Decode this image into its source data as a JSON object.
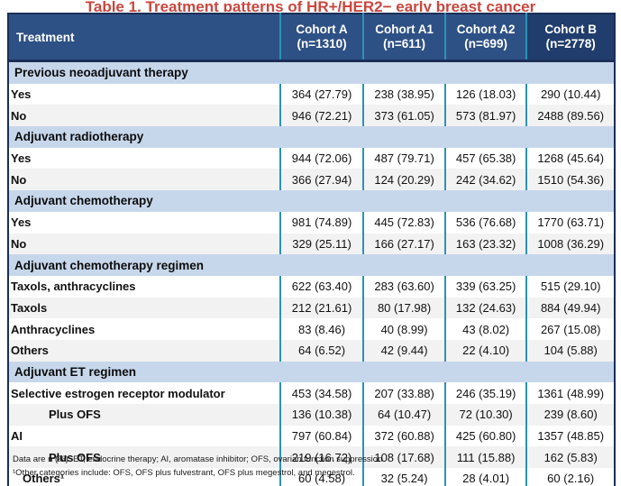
{
  "title": "Table 1. Treatment patterns of HR+/HER2− early breast cancer",
  "colors": {
    "header_blue": "#2e5185",
    "header_dark_blue": "#203d6d",
    "divider_teal": "#2a93b4",
    "section_blue": "#c7d7eb",
    "zebra_gray": "#f2f2f2",
    "border_navy": "#1b2f55",
    "title_red": "#c9473f"
  },
  "table": {
    "treatment_header": "Treatment",
    "columns": [
      {
        "name": "Cohort A",
        "n": "(n=1310)",
        "dark": false
      },
      {
        "name": "Cohort A1",
        "n": "(n=611)",
        "dark": false
      },
      {
        "name": "Cohort A2",
        "n": "(n=699)",
        "dark": false
      },
      {
        "name": "Cohort B",
        "n": "(n=2778)",
        "dark": true
      }
    ],
    "sections": [
      {
        "label": "Previous neoadjuvant therapy",
        "rows": [
          {
            "label": "Yes",
            "indent": 1,
            "values": [
              "364 (27.79)",
              "238 (38.95)",
              "126 (18.03)",
              "290 (10.44)"
            ]
          },
          {
            "label": "No",
            "indent": 1,
            "values": [
              "946 (72.21)",
              "373 (61.05)",
              "573 (81.97)",
              "2488 (89.56)"
            ]
          }
        ]
      },
      {
        "label": "Adjuvant radiotherapy",
        "rows": [
          {
            "label": "Yes",
            "indent": 1,
            "values": [
              "944 (72.06)",
              "487 (79.71)",
              "457 (65.38)",
              "1268 (45.64)"
            ]
          },
          {
            "label": "No",
            "indent": 1,
            "values": [
              "366 (27.94)",
              "124 (20.29)",
              "242 (34.62)",
              "1510 (54.36)"
            ]
          }
        ]
      },
      {
        "label": "Adjuvant chemotherapy",
        "rows": [
          {
            "label": "Yes",
            "indent": 1,
            "values": [
              "981 (74.89)",
              "445 (72.83)",
              "536 (76.68)",
              "1770 (63.71)"
            ]
          },
          {
            "label": "No",
            "indent": 1,
            "values": [
              "329 (25.11)",
              "166 (27.17)",
              "163 (23.32)",
              "1008 (36.29)"
            ]
          }
        ]
      },
      {
        "label": "Adjuvant chemotherapy regimen",
        "rows": [
          {
            "label": "Taxols, anthracyclines",
            "indent": 1,
            "values": [
              "622 (63.40)",
              "283 (63.60)",
              "339 (63.25)",
              "515 (29.10)"
            ]
          },
          {
            "label": "Taxols",
            "indent": 1,
            "values": [
              "212 (21.61)",
              "80 (17.98)",
              "132 (24.63)",
              "884 (49.94)"
            ]
          },
          {
            "label": "Anthracyclines",
            "indent": 1,
            "values": [
              "83 (8.46)",
              "40 (8.99)",
              "43 (8.02)",
              "267 (15.08)"
            ]
          },
          {
            "label": "Others",
            "indent": 1,
            "values": [
              "64 (6.52)",
              "42 (9.44)",
              "22 (4.10)",
              "104 (5.88)"
            ]
          }
        ]
      },
      {
        "label": "Adjuvant ET regimen",
        "rows": [
          {
            "label": "Selective estrogen receptor modulator",
            "indent": 1,
            "values": [
              "453 (34.58)",
              "207 (33.88)",
              "246 (35.19)",
              "1361 (48.99)"
            ]
          },
          {
            "label": "Plus OFS",
            "indent": 2,
            "values": [
              "136 (10.38)",
              "64 (10.47)",
              "72 (10.30)",
              "239 (8.60)"
            ]
          },
          {
            "label": "AI",
            "indent": 1,
            "values": [
              "797 (60.84)",
              "372 (60.88)",
              "425 (60.80)",
              "1357 (48.85)"
            ]
          },
          {
            "label": "Plus OFS",
            "indent": 2,
            "values": [
              "219 (16.72)",
              "108 (17.68)",
              "111 (15.88)",
              "162 (5.83)"
            ]
          },
          {
            "label": "Others¹",
            "indent": 0,
            "values": [
              "60 (4.58)",
              "32 (5.24)",
              "28 (4.01)",
              "60 (2.16)"
            ]
          }
        ]
      }
    ]
  },
  "footnotes": [
    "Data are n (%). ET, endocrine therapy; AI, aromatase inhibitor; OFS, ovarian function suppression",
    "¹Other categories include: OFS, OFS plus fulvestrant, OFS plus megestrol, and megestrol."
  ]
}
